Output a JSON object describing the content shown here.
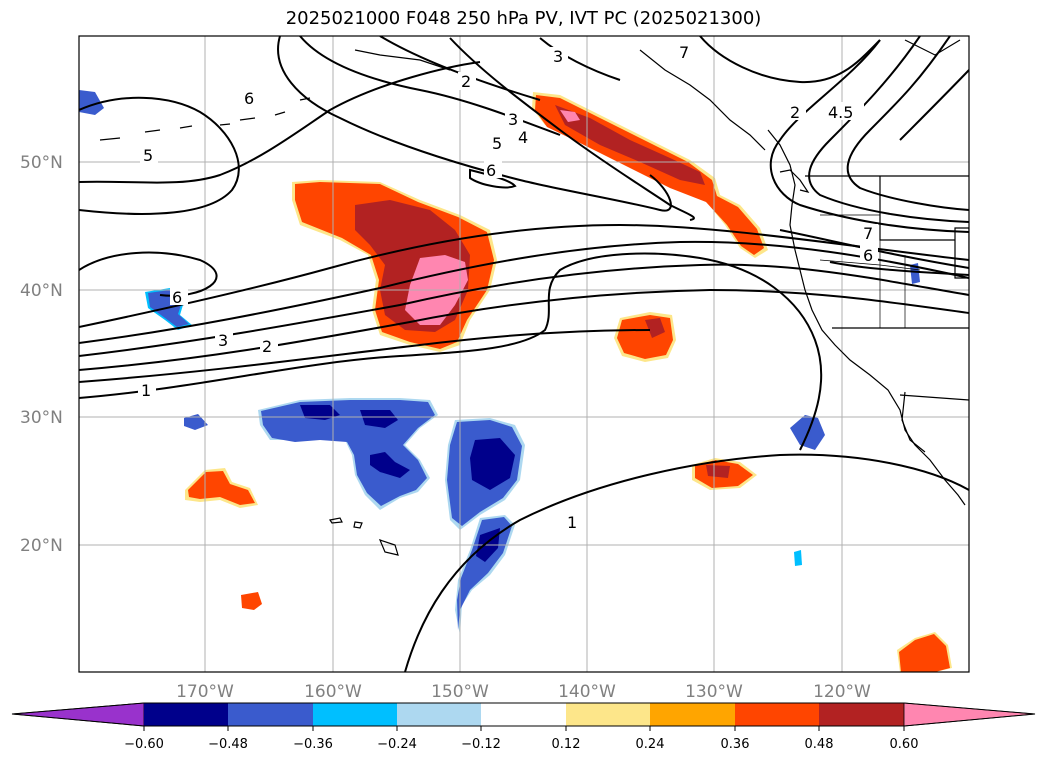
{
  "title": "2025021000 F048 250 hPa PV, IVT PC (2025021300)",
  "lat_labels": [
    "50°N",
    "40°N",
    "30°N",
    "20°N"
  ],
  "lon_labels": [
    "170°W",
    "160°W",
    "150°W",
    "140°W",
    "130°W",
    "120°W"
  ],
  "contour_labels": [
    "6",
    "5",
    "2",
    "3",
    "3",
    "4",
    "5",
    "6",
    "2",
    "4.5",
    "7",
    "6",
    "6",
    "3",
    "2",
    "1",
    "1",
    "7"
  ],
  "colorbar": {
    "colors": [
      "#9932CC",
      "#00008B",
      "#3A5BCD",
      "#00BFFF",
      "#ADD8F0",
      "#FFFFFF",
      "#FDE68A",
      "#FFA500",
      "#FF4500",
      "#B22222",
      "#FF86B0"
    ],
    "tick_labels": [
      "−0.60",
      "−0.48",
      "−0.36",
      "−0.24",
      "−0.12",
      "0.12",
      "0.24",
      "0.36",
      "0.48",
      "0.60"
    ]
  }
}
